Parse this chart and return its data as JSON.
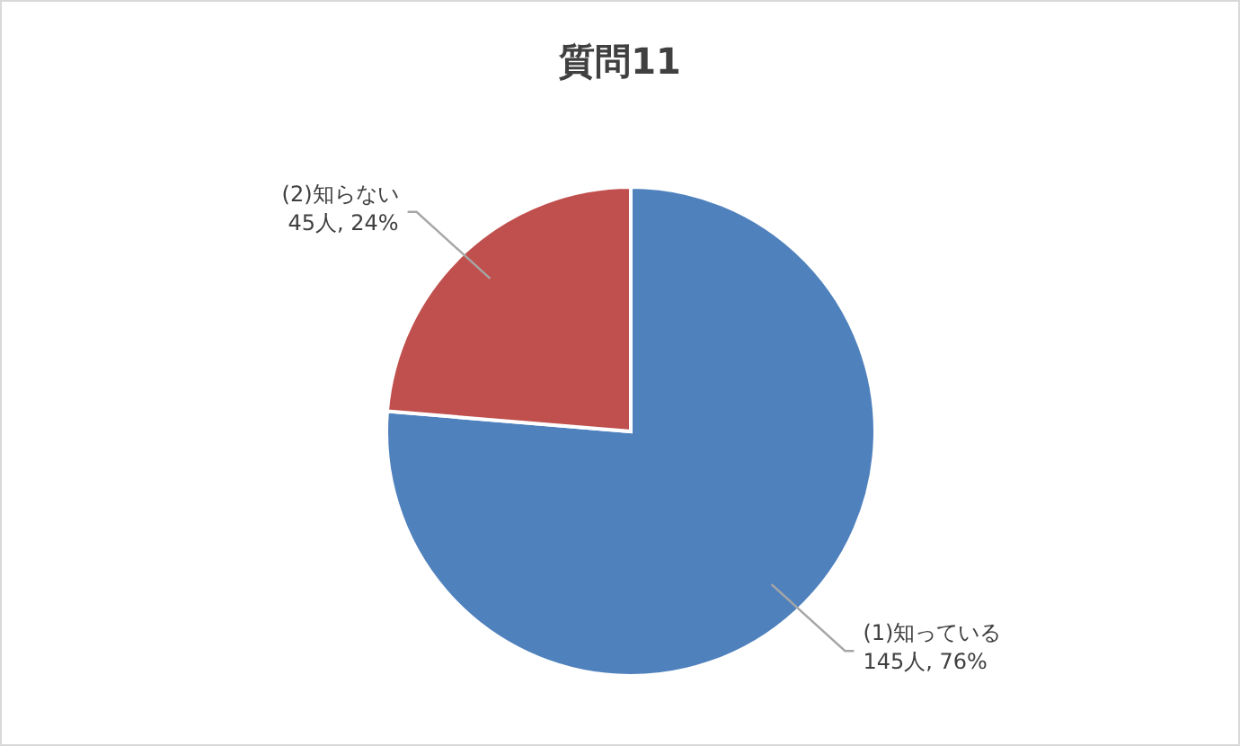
{
  "chart_data": {
    "type": "pie",
    "title": "質問11",
    "categories": [
      "(1)知っている",
      "(2)知らない"
    ],
    "values": [
      145,
      45
    ],
    "colors": [
      "#4f81bd",
      "#c0504d"
    ],
    "value_labels": [
      "145人, 76%",
      "45人, 24%"
    ],
    "legend": false
  }
}
